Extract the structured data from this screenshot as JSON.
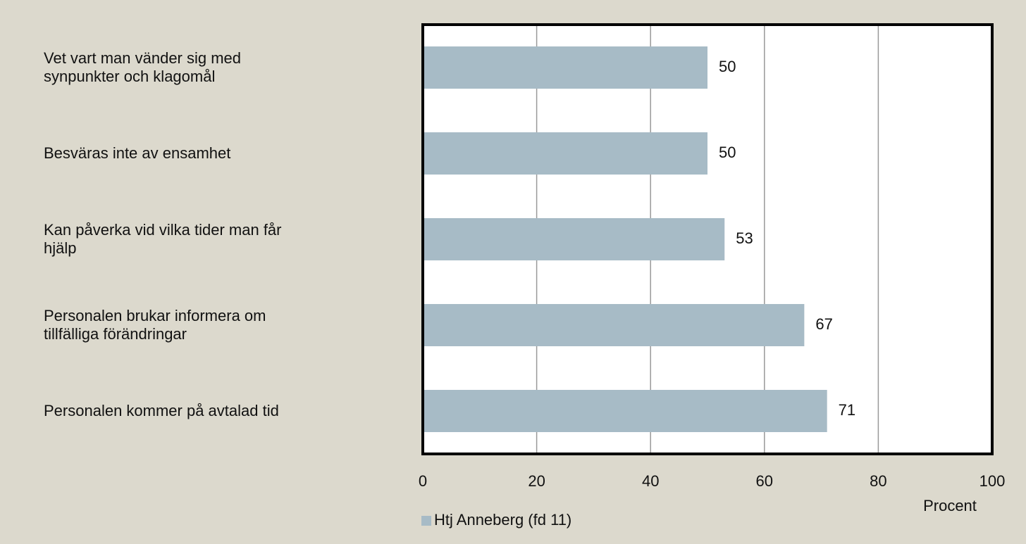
{
  "chart_data": {
    "type": "hbar",
    "categories": [
      "Vet vart man vänder sig med\nsynpunkter och klagomål",
      "Besväras inte av ensamhet",
      "Kan påverka vid vilka tider man får\nhjälp",
      "Personalen brukar informera om\ntillfälliga förändringar",
      "Personalen kommer på avtalad tid"
    ],
    "series": [
      {
        "name": "Htj Anneberg (fd 11)",
        "color": "#a7bbc6",
        "values": [
          50,
          50,
          53,
          67,
          71
        ]
      }
    ],
    "xlim": [
      0,
      100
    ],
    "xticks": [
      0,
      20,
      40,
      60,
      80,
      100
    ],
    "grid": true,
    "x_label": "Procent",
    "legend": "bottom-left"
  }
}
